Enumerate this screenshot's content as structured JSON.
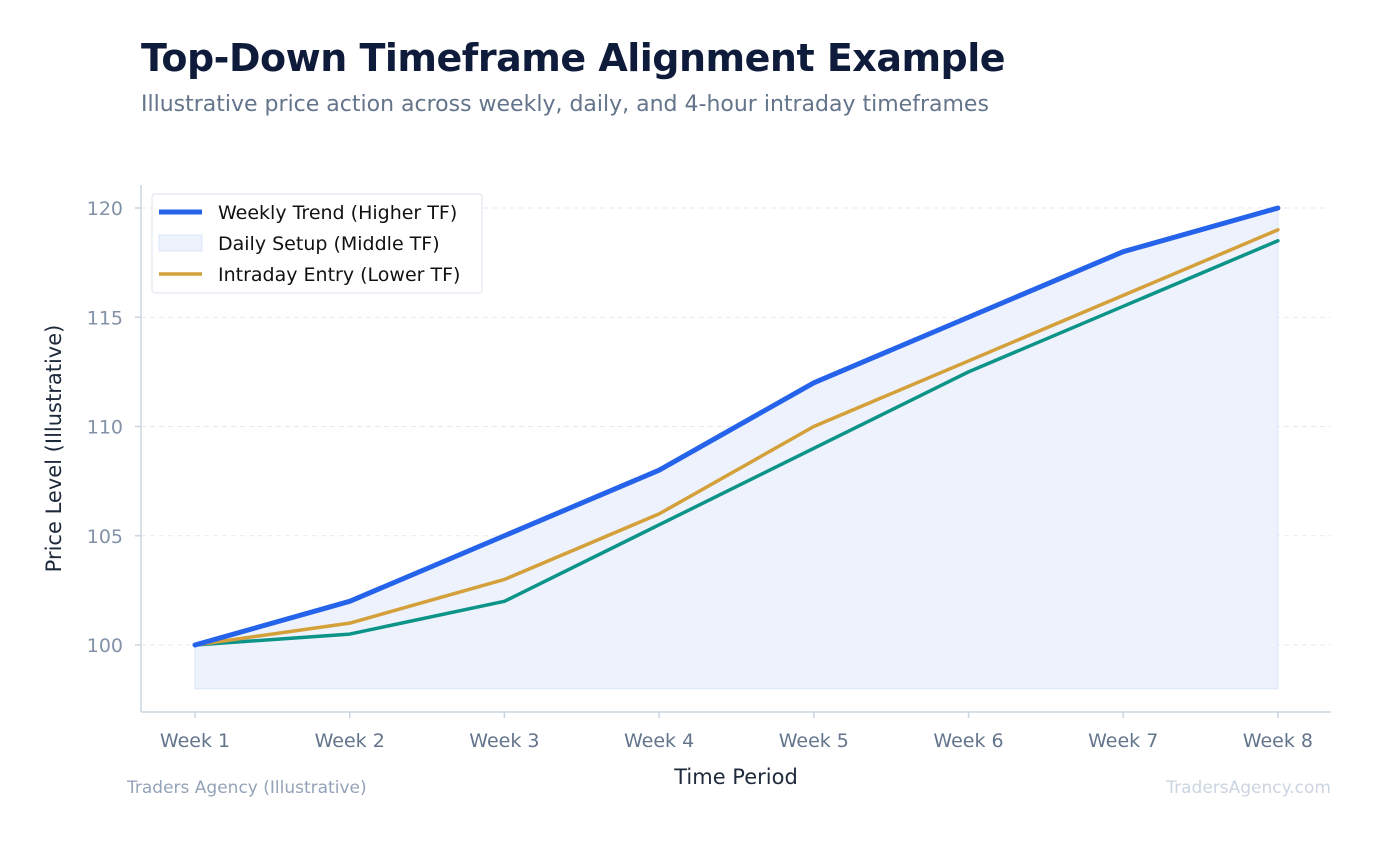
{
  "header": {
    "title": "Top-Down Timeframe Alignment Example",
    "subtitle": "Illustrative price action across weekly, daily, and 4-hour intraday timeframes"
  },
  "footer": {
    "left": "Traders Agency (Illustrative)",
    "right": "TradersAgency.com"
  },
  "chart_data": {
    "type": "line",
    "title": "Top-Down Timeframe Alignment Example",
    "subtitle": "Illustrative price action across weekly, daily, and 4-hour intraday timeframes",
    "xlabel": "Time Period",
    "ylabel": "Price Level (Illustrative)",
    "categories": [
      "Week 1",
      "Week 2",
      "Week 3",
      "Week 4",
      "Week 5",
      "Week 6",
      "Week 7",
      "Week 8"
    ],
    "ylim": [
      97.5,
      121
    ],
    "yticks": [
      100,
      105,
      110,
      115,
      120
    ],
    "grid": "y-dashed",
    "legend_position": "top-left",
    "fill_baseline": 98,
    "series": [
      {
        "name": "Weekly Trend (Higher TF)",
        "color": "#2563eb",
        "style": "line-thick",
        "values": [
          100,
          102,
          105,
          108,
          112,
          115,
          118,
          120
        ]
      },
      {
        "name": "Daily Setup (Middle TF)",
        "color": "#0d9488",
        "style": "line-with-fill",
        "fill_color": "#eef2fd",
        "values": [
          100,
          100.5,
          102,
          105.5,
          109,
          112.5,
          115.5,
          118.5
        ]
      },
      {
        "name": "Intraday Entry (Lower TF)",
        "color": "#d4a03a",
        "style": "line",
        "values": [
          100,
          101,
          103,
          106,
          110,
          113,
          116,
          119
        ]
      }
    ]
  }
}
